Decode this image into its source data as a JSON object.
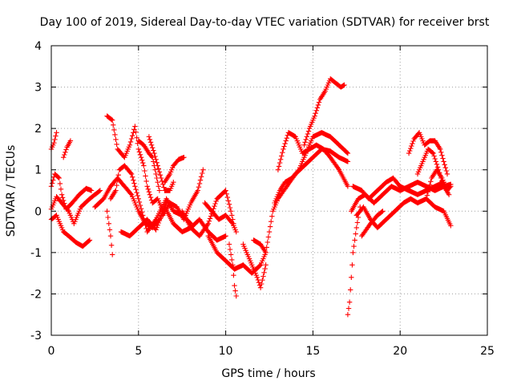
{
  "chart_data": {
    "type": "scatter",
    "title": "Day 100 of 2019, Sidereal Day-to-day VTEC variation (SDTVAR) for receiver brst",
    "xlabel": "GPS time / hours",
    "ylabel": "SDTVAR / TECUs",
    "xlim": [
      0,
      25
    ],
    "ylim": [
      -3,
      4
    ],
    "xticks": [
      "0",
      "5",
      "10",
      "15",
      "20",
      "25"
    ],
    "yticks": [
      "-3",
      "-2",
      "-1",
      "0",
      "1",
      "2",
      "3",
      "4"
    ],
    "grid": true,
    "marker": "plus",
    "color": "#ff0000",
    "series": [
      {
        "name": "tracks",
        "traces": [
          [
            [
              0.0,
              1.5
            ],
            [
              0.15,
              1.65
            ],
            [
              0.3,
              1.9
            ]
          ],
          [
            [
              0.7,
              1.3
            ],
            [
              0.9,
              1.55
            ],
            [
              1.1,
              1.7
            ]
          ],
          [
            [
              0.0,
              0.6
            ],
            [
              0.2,
              0.9
            ],
            [
              0.45,
              0.8
            ],
            [
              0.6,
              0.4
            ],
            [
              0.85,
              0.05
            ],
            [
              1.2,
              0.2
            ],
            [
              1.6,
              0.4
            ],
            [
              2.0,
              0.55
            ],
            [
              2.3,
              0.5
            ]
          ],
          [
            [
              0.0,
              -0.2
            ],
            [
              0.3,
              -0.1
            ],
            [
              0.7,
              -0.5
            ],
            [
              1.0,
              -0.6
            ],
            [
              1.4,
              -0.75
            ],
            [
              1.8,
              -0.85
            ],
            [
              2.2,
              -0.7
            ]
          ],
          [
            [
              0.0,
              0.05
            ],
            [
              0.3,
              0.35
            ],
            [
              0.6,
              0.2
            ],
            [
              1.0,
              0.0
            ],
            [
              1.3,
              -0.3
            ],
            [
              1.7,
              0.1
            ],
            [
              2.2,
              0.3
            ],
            [
              2.8,
              0.5
            ]
          ],
          [
            [
              3.2,
              0.0
            ],
            [
              3.4,
              -0.6
            ],
            [
              3.5,
              -1.05
            ]
          ],
          [
            [
              3.2,
              2.3
            ],
            [
              3.5,
              2.2
            ],
            [
              3.8,
              1.5
            ],
            [
              4.2,
              1.3
            ],
            [
              4.5,
              1.6
            ],
            [
              4.8,
              2.05
            ],
            [
              5.0,
              1.5
            ],
            [
              5.3,
              1.1
            ],
            [
              5.5,
              0.6
            ],
            [
              5.8,
              0.2
            ],
            [
              6.1,
              0.3
            ],
            [
              6.4,
              0.0
            ]
          ],
          [
            [
              3.4,
              0.3
            ],
            [
              3.7,
              0.5
            ],
            [
              3.9,
              1.0
            ],
            [
              4.2,
              1.1
            ],
            [
              4.6,
              0.9
            ],
            [
              5.0,
              0.3
            ],
            [
              5.5,
              -0.5
            ],
            [
              6.0,
              -0.2
            ],
            [
              6.6,
              0.3
            ],
            [
              7.0,
              0.0
            ],
            [
              7.5,
              -0.1
            ],
            [
              8.0,
              -0.3
            ]
          ],
          [
            [
              2.5,
              0.1
            ],
            [
              3.0,
              0.3
            ],
            [
              3.4,
              0.6
            ],
            [
              3.8,
              0.8
            ],
            [
              4.2,
              0.6
            ],
            [
              4.6,
              0.4
            ],
            [
              5.0,
              0.0
            ],
            [
              5.4,
              -0.3
            ],
            [
              5.8,
              -0.4
            ],
            [
              6.2,
              -0.2
            ],
            [
              6.6,
              0.2
            ]
          ],
          [
            [
              5.0,
              1.7
            ],
            [
              5.3,
              1.6
            ],
            [
              5.6,
              1.4
            ],
            [
              5.8,
              1.3
            ],
            [
              6.0,
              0.9
            ],
            [
              6.2,
              0.5
            ]
          ],
          [
            [
              5.6,
              1.8
            ],
            [
              5.9,
              1.4
            ],
            [
              6.1,
              1.1
            ],
            [
              6.3,
              0.8
            ],
            [
              6.5,
              0.5
            ],
            [
              6.8,
              0.5
            ],
            [
              7.0,
              0.7
            ]
          ],
          [
            [
              6.5,
              0.7
            ],
            [
              6.8,
              0.9
            ],
            [
              7.0,
              1.1
            ],
            [
              7.3,
              1.25
            ],
            [
              7.6,
              1.3
            ]
          ],
          [
            [
              6.4,
              -0.1
            ],
            [
              6.8,
              0.2
            ],
            [
              7.2,
              0.1
            ],
            [
              7.6,
              -0.2
            ],
            [
              8.0,
              0.2
            ],
            [
              8.4,
              0.5
            ],
            [
              8.7,
              1.0
            ]
          ],
          [
            [
              4.0,
              -0.5
            ],
            [
              4.5,
              -0.6
            ],
            [
              5.0,
              -0.4
            ],
            [
              5.5,
              -0.2
            ],
            [
              6.0,
              -0.45
            ],
            [
              6.5,
              0.1
            ],
            [
              7.0,
              -0.3
            ],
            [
              7.5,
              -0.5
            ],
            [
              8.0,
              -0.4
            ],
            [
              8.5,
              -0.2
            ],
            [
              9.0,
              -0.5
            ],
            [
              9.5,
              -0.7
            ],
            [
              10.0,
              -0.6
            ]
          ],
          [
            [
              7.5,
              0.0
            ],
            [
              8.0,
              -0.4
            ],
            [
              8.5,
              -0.6
            ],
            [
              9.0,
              -0.3
            ],
            [
              9.5,
              0.3
            ],
            [
              10.0,
              0.5
            ],
            [
              10.3,
              0.0
            ],
            [
              10.5,
              -0.4
            ]
          ],
          [
            [
              8.8,
              0.2
            ],
            [
              9.2,
              0.0
            ],
            [
              9.6,
              -0.2
            ],
            [
              10.0,
              -0.1
            ],
            [
              10.4,
              -0.3
            ],
            [
              10.6,
              -0.5
            ]
          ],
          [
            [
              9.0,
              -0.6
            ],
            [
              9.5,
              -1.0
            ],
            [
              10.0,
              -1.2
            ],
            [
              10.5,
              -1.4
            ],
            [
              11.0,
              -1.3
            ],
            [
              11.5,
              -1.5
            ],
            [
              12.0,
              -1.3
            ],
            [
              12.3,
              -1.0
            ]
          ],
          [
            [
              10.2,
              -0.8
            ],
            [
              10.4,
              -1.3
            ],
            [
              10.5,
              -1.8
            ],
            [
              10.6,
              -2.05
            ]
          ],
          [
            [
              11.0,
              -0.8
            ],
            [
              11.4,
              -1.2
            ],
            [
              11.8,
              -1.6
            ],
            [
              12.0,
              -1.85
            ],
            [
              12.3,
              -1.3
            ]
          ],
          [
            [
              11.6,
              -0.7
            ],
            [
              12.0,
              -0.8
            ],
            [
              12.3,
              -1.0
            ],
            [
              12.5,
              -0.5
            ],
            [
              12.7,
              0.0
            ],
            [
              13.0,
              0.3
            ],
            [
              13.5,
              0.6
            ],
            [
              14.0,
              0.9
            ],
            [
              14.5,
              1.1
            ],
            [
              15.0,
              1.3
            ],
            [
              15.5,
              1.5
            ],
            [
              16.0,
              1.45
            ],
            [
              16.5,
              1.3
            ],
            [
              17.0,
              1.2
            ]
          ],
          [
            [
              12.8,
              0.2
            ],
            [
              13.1,
              0.5
            ],
            [
              13.4,
              0.7
            ],
            [
              13.8,
              0.8
            ],
            [
              14.2,
              1.0
            ],
            [
              14.6,
              1.4
            ],
            [
              15.0,
              1.8
            ],
            [
              15.5,
              1.9
            ],
            [
              16.0,
              1.8
            ],
            [
              16.5,
              1.6
            ],
            [
              17.0,
              1.4
            ]
          ],
          [
            [
              13.0,
              1.0
            ],
            [
              13.3,
              1.5
            ],
            [
              13.6,
              1.9
            ],
            [
              14.0,
              1.8
            ],
            [
              14.4,
              1.4
            ],
            [
              14.8,
              1.5
            ],
            [
              15.2,
              1.6
            ],
            [
              15.6,
              1.5
            ],
            [
              16.0,
              1.3
            ],
            [
              16.5,
              1.0
            ],
            [
              17.0,
              0.6
            ]
          ],
          [
            [
              14.5,
              1.6
            ],
            [
              14.8,
              2.0
            ],
            [
              15.1,
              2.3
            ],
            [
              15.4,
              2.7
            ],
            [
              15.7,
              2.9
            ],
            [
              16.0,
              3.2
            ],
            [
              16.3,
              3.1
            ],
            [
              16.6,
              3.0
            ],
            [
              16.8,
              3.05
            ]
          ],
          [
            [
              17.0,
              -2.5
            ],
            [
              17.1,
              -2.2
            ],
            [
              17.2,
              -1.6
            ],
            [
              17.3,
              -1.0
            ],
            [
              17.5,
              -0.4
            ],
            [
              17.7,
              0.1
            ]
          ],
          [
            [
              17.2,
              0.0
            ],
            [
              17.6,
              0.3
            ],
            [
              18.0,
              0.4
            ],
            [
              18.5,
              0.2
            ],
            [
              19.0,
              0.4
            ],
            [
              19.5,
              0.6
            ],
            [
              20.0,
              0.5
            ],
            [
              20.5,
              0.6
            ],
            [
              21.0,
              0.7
            ],
            [
              21.5,
              0.6
            ],
            [
              22.0,
              0.5
            ],
            [
              22.5,
              0.6
            ],
            [
              22.9,
              0.65
            ]
          ],
          [
            [
              17.3,
              0.6
            ],
            [
              17.8,
              0.5
            ],
            [
              18.2,
              0.3
            ],
            [
              18.7,
              0.5
            ],
            [
              19.2,
              0.7
            ],
            [
              19.6,
              0.8
            ],
            [
              20.0,
              0.6
            ],
            [
              20.5,
              0.5
            ],
            [
              21.0,
              0.4
            ],
            [
              21.5,
              0.5
            ],
            [
              22.0,
              0.6
            ],
            [
              22.5,
              0.7
            ]
          ],
          [
            [
              17.5,
              -0.1
            ],
            [
              17.9,
              0.1
            ],
            [
              18.3,
              -0.2
            ],
            [
              18.7,
              -0.4
            ],
            [
              19.2,
              -0.2
            ],
            [
              19.7,
              0.0
            ],
            [
              20.2,
              0.2
            ],
            [
              20.6,
              0.3
            ],
            [
              21.0,
              0.2
            ],
            [
              21.5,
              0.3
            ],
            [
              22.0,
              0.1
            ],
            [
              22.5,
              0.0
            ],
            [
              22.9,
              -0.35
            ]
          ],
          [
            [
              17.8,
              -0.6
            ],
            [
              18.3,
              -0.3
            ],
            [
              18.7,
              -0.1
            ],
            [
              19.0,
              0.0
            ]
          ],
          [
            [
              20.5,
              1.4
            ],
            [
              20.8,
              1.75
            ],
            [
              21.1,
              1.9
            ],
            [
              21.4,
              1.6
            ],
            [
              21.7,
              1.7
            ],
            [
              22.0,
              1.7
            ],
            [
              22.3,
              1.5
            ],
            [
              22.5,
              1.2
            ],
            [
              22.7,
              0.9
            ]
          ],
          [
            [
              21.0,
              0.9
            ],
            [
              21.3,
              1.2
            ],
            [
              21.6,
              1.5
            ],
            [
              21.9,
              1.4
            ],
            [
              22.2,
              1.0
            ],
            [
              22.5,
              0.6
            ],
            [
              22.8,
              0.4
            ]
          ],
          [
            [
              21.5,
              0.3
            ],
            [
              21.8,
              0.8
            ],
            [
              22.1,
              1.0
            ],
            [
              22.4,
              0.8
            ],
            [
              22.7,
              0.5
            ],
            [
              22.9,
              0.6
            ]
          ]
        ]
      }
    ]
  }
}
